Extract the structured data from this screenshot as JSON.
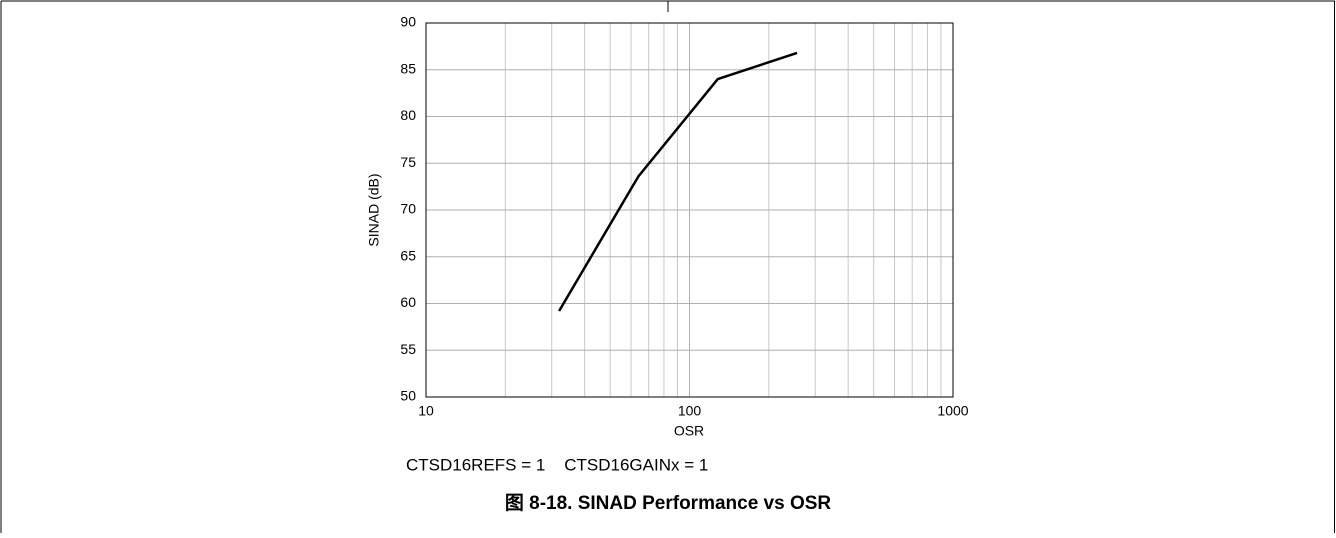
{
  "chart_data": {
    "type": "line",
    "x": [
      32,
      64,
      128,
      256
    ],
    "series": [
      {
        "name": "SINAD",
        "color": "#000000",
        "values": [
          59.2,
          73.6,
          84,
          86.8
        ]
      }
    ],
    "xlabel": "OSR",
    "ylabel": "SINAD (dB)",
    "xlim": [
      10,
      1000
    ],
    "xticks": [
      10,
      100,
      1000
    ],
    "xscale": "log",
    "ylim": [
      50,
      90
    ],
    "yticks": [
      50,
      55,
      60,
      65,
      70,
      75,
      80,
      85,
      90
    ],
    "grid": true,
    "minor_grid": true,
    "annotation": "CTSD16REFS = 1    CTSD16GAINx = 1",
    "title": "图 8-18. SINAD Performance vs OSR"
  }
}
